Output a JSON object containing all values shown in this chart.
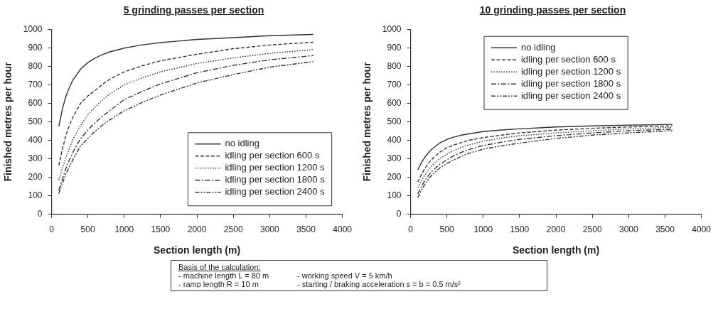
{
  "chart_data": [
    {
      "type": "line",
      "title": "5 grinding passes per section",
      "xlabel": "Section length (m)",
      "ylabel": "Finished metres per hour",
      "x": [
        100,
        150,
        200,
        250,
        300,
        400,
        500,
        600,
        700,
        800,
        1000,
        1250,
        1500,
        2000,
        2500,
        3000,
        3600
      ],
      "series": [
        {
          "name": "no idling",
          "color": "#333333",
          "line_style": "solid",
          "values": [
            475,
            570,
            640,
            690,
            730,
            785,
            820,
            845,
            863,
            878,
            898,
            916,
            928,
            945,
            955,
            965,
            972
          ]
        },
        {
          "name": "idling per section 600 s",
          "color": "#333333",
          "line_style": "dashed",
          "values": [
            265,
            355,
            430,
            485,
            530,
            600,
            640,
            670,
            702,
            730,
            770,
            803,
            830,
            865,
            895,
            915,
            930
          ]
        },
        {
          "name": "idling per section 1200 s",
          "color": "#333333",
          "line_style": "dotted",
          "values": [
            185,
            250,
            310,
            362,
            410,
            480,
            540,
            580,
            618,
            650,
            700,
            738,
            770,
            815,
            845,
            870,
            890
          ]
        },
        {
          "name": "idling per section 1800 s",
          "color": "#333333",
          "line_style": "dashdot",
          "values": [
            130,
            192,
            250,
            298,
            340,
            410,
            455,
            495,
            530,
            560,
            620,
            665,
            705,
            765,
            805,
            835,
            858
          ]
        },
        {
          "name": "idling per section 2400 s",
          "color": "#333333",
          "line_style": "dashdotdot",
          "values": [
            112,
            168,
            220,
            262,
            300,
            370,
            410,
            450,
            482,
            510,
            560,
            605,
            645,
            710,
            755,
            795,
            825
          ]
        }
      ],
      "xlim": [
        0,
        4000
      ],
      "xticks": [
        0,
        500,
        1000,
        1500,
        2000,
        2500,
        3000,
        3500,
        4000
      ],
      "ylim": [
        0,
        1000
      ],
      "yticks": [
        0,
        100,
        200,
        300,
        400,
        500,
        600,
        700,
        800,
        900,
        1000
      ],
      "grid": false,
      "legend": "bottom right",
      "marker": "none",
      "annotations": [
        "Basis of the calculation:",
        "- machine length L = 80 m",
        "- ramp length R = 10 m",
        "- working speed V = 5 km/h",
        "- starting / braking acceleration s = b = 0.5 m/s²"
      ]
    },
    {
      "type": "line",
      "title": "10 grinding passes per section",
      "xlabel": "Section length (m)",
      "ylabel": "Finished metres per hour",
      "x": [
        100,
        150,
        200,
        250,
        300,
        400,
        500,
        600,
        700,
        800,
        1000,
        1250,
        1500,
        2000,
        2500,
        3000,
        3600
      ],
      "series": [
        {
          "name": "no idling",
          "color": "#333333",
          "line_style": "solid",
          "values": [
            240,
            280,
            310,
            335,
            355,
            385,
            405,
            418,
            428,
            435,
            447,
            456,
            462,
            472,
            478,
            482,
            486
          ]
        },
        {
          "name": "idling per section 600 s",
          "color": "#333333",
          "line_style": "dashed",
          "values": [
            175,
            215,
            250,
            278,
            300,
            335,
            360,
            375,
            388,
            400,
            415,
            428,
            440,
            455,
            465,
            472,
            478
          ]
        },
        {
          "name": "idling per section 1200 s",
          "color": "#333333",
          "line_style": "dotted",
          "values": [
            145,
            182,
            215,
            242,
            265,
            300,
            325,
            345,
            362,
            375,
            395,
            412,
            425,
            440,
            452,
            462,
            470
          ]
        },
        {
          "name": "idling per section 1800 s",
          "color": "#333333",
          "line_style": "dashdot",
          "values": [
            110,
            150,
            185,
            212,
            235,
            270,
            295,
            318,
            335,
            350,
            372,
            390,
            405,
            425,
            440,
            452,
            460
          ]
        },
        {
          "name": "idling per section 2400 s",
          "color": "#333333",
          "line_style": "dashdotdot",
          "values": [
            90,
            130,
            165,
            192,
            215,
            250,
            275,
            295,
            313,
            330,
            352,
            370,
            385,
            410,
            428,
            440,
            452
          ]
        }
      ],
      "xlim": [
        0,
        4000
      ],
      "xticks": [
        0,
        500,
        1000,
        1500,
        2000,
        2500,
        3000,
        3500,
        4000
      ],
      "ylim": [
        0,
        1000
      ],
      "yticks": [
        0,
        100,
        200,
        300,
        400,
        500,
        600,
        700,
        800,
        900,
        1000
      ],
      "grid": false,
      "legend": "top",
      "marker": "none"
    }
  ]
}
